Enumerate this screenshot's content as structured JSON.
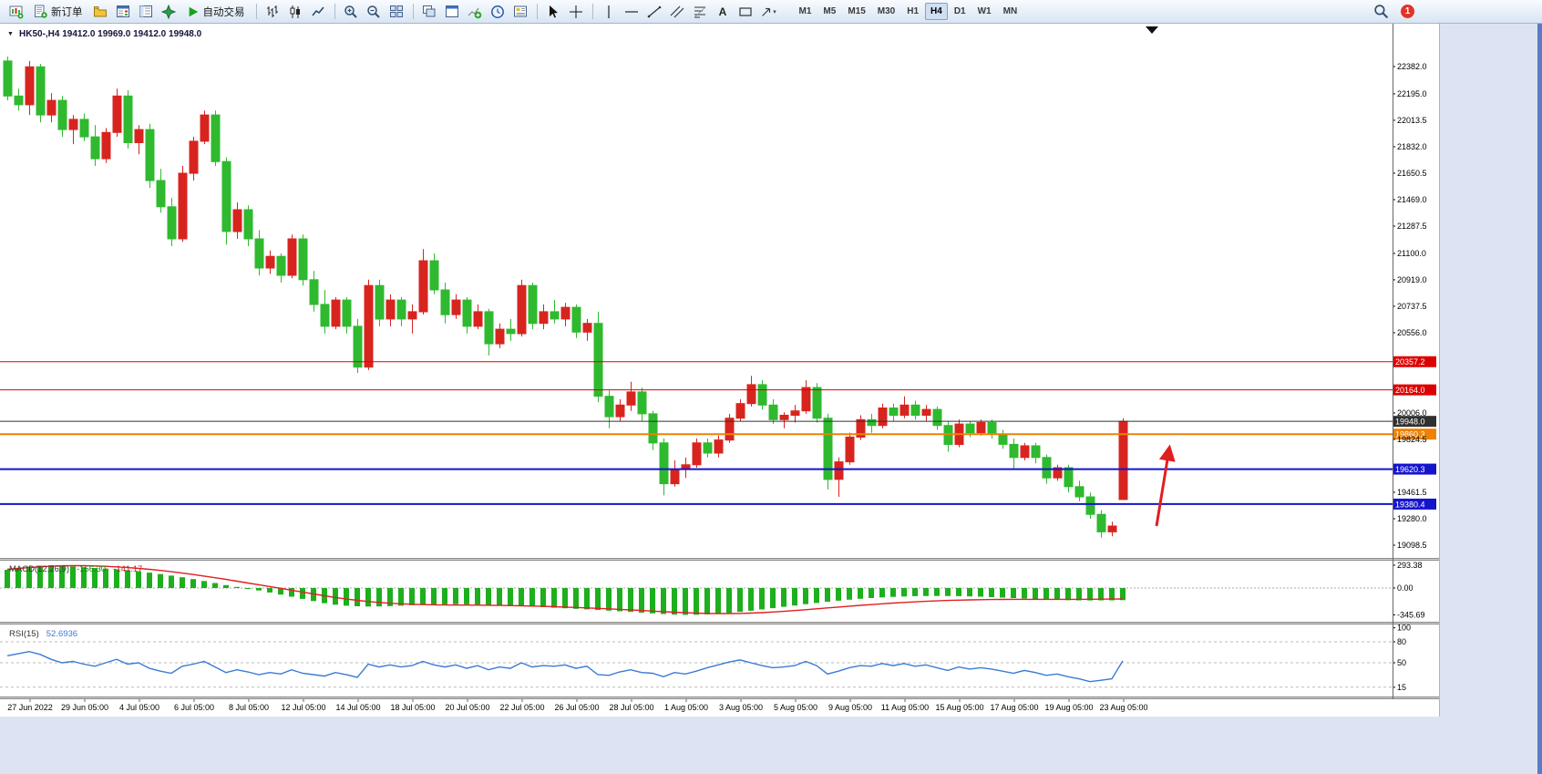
{
  "toolbar": {
    "new_order_label": "新订单",
    "auto_trading_label": "自动交易",
    "timeframes": [
      "M1",
      "M5",
      "M15",
      "M30",
      "H1",
      "H4",
      "D1",
      "W1",
      "MN"
    ],
    "active_timeframe": "H4",
    "notification_count": "1"
  },
  "icons": {
    "expander": "▼",
    "text_tool": "A",
    "dropdown_caret": "▾"
  },
  "chart": {
    "symbol_header": "HK50-,H4 19412.0 19969.0 19412.0 19948.0",
    "up_color": "#d8241f",
    "down_color": "#2fb92f",
    "price_ticks": [
      "22382.0",
      "22195.0",
      "22013.5",
      "21832.0",
      "21650.5",
      "21469.0",
      "21287.5",
      "21100.0",
      "20919.0",
      "20737.5",
      "20556.0",
      "20006.0",
      "19824.5",
      "19461.5",
      "19280.0",
      "19098.5"
    ],
    "levels": [
      {
        "price": 20357.2,
        "label": "20357.2",
        "color": "#dd0000",
        "width": 1
      },
      {
        "price": 20164.0,
        "label": "20164.0",
        "color": "#dd0000",
        "width": 1
      },
      {
        "price": 19948.0,
        "label": "19948.0",
        "color": "#303030",
        "width": 1
      },
      {
        "price": 19860.3,
        "label": "19860.3",
        "color": "#ef8200",
        "width": 2
      },
      {
        "price": 19620.3,
        "label": "19620.3",
        "color": "#1414cc",
        "width": 2
      },
      {
        "price": 19380.4,
        "label": "19380.4",
        "color": "#1414cc",
        "width": 2
      }
    ],
    "time_labels": [
      "27 Jun 2022",
      "29 Jun 05:00",
      "4 Jul 05:00",
      "6 Jul 05:00",
      "8 Jul 05:00",
      "12 Jul 05:00",
      "14 Jul 05:00",
      "18 Jul 05:00",
      "20 Jul 05:00",
      "22 Jul 05:00",
      "26 Jul 05:00",
      "28 Jul 05:00",
      "1 Aug 05:00",
      "3 Aug 05:00",
      "5 Aug 05:00",
      "9 Aug 05:00",
      "11 Aug 05:00",
      "15 Aug 05:00",
      "17 Aug 05:00",
      "19 Aug 05:00",
      "23 Aug 05:00"
    ]
  },
  "macd": {
    "label": "MACD(12,26,9)",
    "main_value": "-156.30",
    "signal_value": "-141.17",
    "scale": [
      "293.38",
      "0.00",
      "-345.69"
    ],
    "histogram": [
      235,
      255,
      275,
      288,
      293,
      288,
      278,
      268,
      258,
      250,
      242,
      230,
      215,
      198,
      180,
      160,
      138,
      115,
      90,
      64,
      38,
      14,
      -8,
      -32,
      -58,
      -85,
      -112,
      -140,
      -168,
      -195,
      -215,
      -228,
      -235,
      -238,
      -237,
      -233,
      -228,
      -222,
      -217,
      -213,
      -210,
      -209,
      -210,
      -213,
      -217,
      -222,
      -228,
      -234,
      -240,
      -247,
      -254,
      -261,
      -268,
      -275,
      -283,
      -291,
      -299,
      -308,
      -317,
      -326,
      -334,
      -341,
      -345,
      -344,
      -339,
      -331,
      -320,
      -307,
      -292,
      -276,
      -259,
      -242,
      -225,
      -208,
      -192,
      -177,
      -163,
      -150,
      -139,
      -129,
      -121,
      -114,
      -109,
      -105,
      -103,
      -102,
      -103,
      -105,
      -108,
      -112,
      -117,
      -123,
      -129,
      -135,
      -141,
      -147,
      -152,
      -156,
      -159,
      -160,
      -159,
      -158,
      -156.3
    ],
    "signal": [
      240,
      252,
      263,
      273,
      281,
      286,
      288,
      287,
      284,
      279,
      272,
      263,
      252,
      240,
      226,
      210,
      193,
      174,
      154,
      133,
      111,
      88,
      65,
      42,
      19,
      -4,
      -28,
      -52,
      -76,
      -100,
      -122,
      -142,
      -159,
      -174,
      -186,
      -196,
      -203,
      -209,
      -213,
      -216,
      -218,
      -219,
      -220,
      -221,
      -222,
      -224,
      -226,
      -229,
      -232,
      -236,
      -240,
      -245,
      -250,
      -256,
      -262,
      -268,
      -275,
      -282,
      -289,
      -297,
      -304,
      -311,
      -318,
      -323,
      -327,
      -329,
      -329,
      -327,
      -323,
      -317,
      -309,
      -300,
      -290,
      -279,
      -268,
      -256,
      -245,
      -234,
      -223,
      -213,
      -203,
      -194,
      -186,
      -178,
      -171,
      -165,
      -160,
      -156,
      -153,
      -150,
      -148,
      -147,
      -146,
      -146,
      -146,
      -146,
      -146,
      -146,
      -145,
      -144,
      -143,
      -142,
      -141.17
    ]
  },
  "rsi": {
    "label": "RSI(15)",
    "value": "52.6936",
    "scale": [
      "100",
      "80",
      "50",
      "15"
    ],
    "levels": [
      80,
      50,
      15
    ],
    "values": [
      60,
      63,
      66,
      62,
      55,
      50,
      52,
      48,
      45,
      50,
      55,
      48,
      50,
      42,
      38,
      35,
      45,
      48,
      52,
      44,
      36,
      40,
      37,
      33,
      36,
      34,
      40,
      35,
      33,
      31,
      36,
      33,
      29,
      48,
      44,
      47,
      44,
      46,
      52,
      47,
      44,
      47,
      42,
      46,
      40,
      44,
      42,
      50,
      44,
      46,
      45,
      47,
      42,
      45,
      33,
      32,
      37,
      40,
      36,
      35,
      30,
      36,
      34,
      38,
      43,
      47,
      51,
      54,
      50,
      46,
      43,
      44,
      46,
      52,
      46,
      34,
      38,
      43,
      46,
      45,
      49,
      46,
      49,
      45,
      47,
      43,
      39,
      44,
      41,
      43,
      41,
      38,
      35,
      39,
      36,
      32,
      34,
      30,
      27,
      23,
      25,
      27,
      52.69
    ]
  },
  "chart_data": {
    "type": "candlestick",
    "symbol": "HK50-",
    "timeframe": "H4",
    "ohlc_current": [
      19412.0,
      19969.0,
      19412.0,
      19948.0
    ],
    "price_range": [
      19098.5,
      22382.0
    ],
    "candles": [
      [
        22420,
        22450,
        22150,
        22180
      ],
      [
        22180,
        22230,
        22080,
        22120
      ],
      [
        22120,
        22420,
        22050,
        22380
      ],
      [
        22380,
        22400,
        22000,
        22050
      ],
      [
        22050,
        22200,
        22000,
        22150
      ],
      [
        22150,
        22180,
        21900,
        21950
      ],
      [
        21950,
        22050,
        21850,
        22020
      ],
      [
        22020,
        22060,
        21870,
        21900
      ],
      [
        21900,
        21980,
        21700,
        21750
      ],
      [
        21750,
        21960,
        21720,
        21930
      ],
      [
        21930,
        22230,
        21900,
        22180
      ],
      [
        22180,
        22220,
        21820,
        21860
      ],
      [
        21860,
        21980,
        21780,
        21950
      ],
      [
        21950,
        21990,
        21550,
        21600
      ],
      [
        21600,
        21680,
        21380,
        21420
      ],
      [
        21420,
        21480,
        21150,
        21200
      ],
      [
        21200,
        21700,
        21180,
        21650
      ],
      [
        21650,
        21900,
        21600,
        21870
      ],
      [
        21870,
        22080,
        21850,
        22050
      ],
      [
        22050,
        22080,
        21700,
        21730
      ],
      [
        21730,
        21760,
        21160,
        21250
      ],
      [
        21250,
        21450,
        21200,
        21400
      ],
      [
        21400,
        21430,
        21150,
        21200
      ],
      [
        21200,
        21260,
        20950,
        21000
      ],
      [
        21000,
        21120,
        20960,
        21080
      ],
      [
        21080,
        21100,
        20900,
        20950
      ],
      [
        20950,
        21230,
        20930,
        21200
      ],
      [
        21200,
        21230,
        20880,
        20920
      ],
      [
        20920,
        20980,
        20700,
        20750
      ],
      [
        20750,
        20850,
        20550,
        20600
      ],
      [
        20600,
        20800,
        20580,
        20780
      ],
      [
        20780,
        20800,
        20550,
        20600
      ],
      [
        20600,
        20650,
        20280,
        20320
      ],
      [
        20320,
        20920,
        20300,
        20880
      ],
      [
        20880,
        20920,
        20600,
        20650
      ],
      [
        20650,
        20820,
        20600,
        20780
      ],
      [
        20780,
        20800,
        20600,
        20650
      ],
      [
        20650,
        20750,
        20550,
        20700
      ],
      [
        20700,
        21130,
        20680,
        21050
      ],
      [
        21050,
        21100,
        20820,
        20850
      ],
      [
        20850,
        20900,
        20620,
        20680
      ],
      [
        20680,
        20820,
        20650,
        20780
      ],
      [
        20780,
        20800,
        20550,
        20600
      ],
      [
        20600,
        20750,
        20580,
        20700
      ],
      [
        20700,
        20720,
        20400,
        20480
      ],
      [
        20480,
        20620,
        20450,
        20580
      ],
      [
        20580,
        20650,
        20500,
        20550
      ],
      [
        20550,
        20920,
        20530,
        20880
      ],
      [
        20880,
        20900,
        20580,
        20620
      ],
      [
        20620,
        20750,
        20580,
        20700
      ],
      [
        20700,
        20780,
        20620,
        20650
      ],
      [
        20650,
        20760,
        20600,
        20730
      ],
      [
        20730,
        20750,
        20520,
        20560
      ],
      [
        20560,
        20650,
        20500,
        20620
      ],
      [
        20620,
        20700,
        20080,
        20120
      ],
      [
        20120,
        20160,
        19900,
        19980
      ],
      [
        19980,
        20100,
        19950,
        20060
      ],
      [
        20060,
        20220,
        20020,
        20150
      ],
      [
        20150,
        20180,
        19950,
        20000
      ],
      [
        20000,
        20020,
        19750,
        19800
      ],
      [
        19800,
        19830,
        19440,
        19520
      ],
      [
        19520,
        19680,
        19500,
        19620
      ],
      [
        19620,
        19700,
        19560,
        19650
      ],
      [
        19650,
        19830,
        19630,
        19800
      ],
      [
        19800,
        19830,
        19700,
        19730
      ],
      [
        19730,
        19850,
        19700,
        19820
      ],
      [
        19820,
        20000,
        19800,
        19970
      ],
      [
        19970,
        20100,
        19950,
        20070
      ],
      [
        20070,
        20260,
        20050,
        20200
      ],
      [
        20200,
        20230,
        20030,
        20060
      ],
      [
        20060,
        20100,
        19930,
        19960
      ],
      [
        19960,
        20010,
        19900,
        19990
      ],
      [
        19990,
        20060,
        19940,
        20020
      ],
      [
        20020,
        20230,
        20000,
        20180
      ],
      [
        20180,
        20210,
        19940,
        19970
      ],
      [
        19970,
        20000,
        19480,
        19550
      ],
      [
        19550,
        19700,
        19430,
        19670
      ],
      [
        19670,
        19870,
        19650,
        19840
      ],
      [
        19840,
        19990,
        19820,
        19960
      ],
      [
        19960,
        20000,
        19870,
        19920
      ],
      [
        19920,
        20070,
        19900,
        20040
      ],
      [
        20040,
        20070,
        19950,
        19990
      ],
      [
        19990,
        20120,
        19970,
        20060
      ],
      [
        20060,
        20090,
        19960,
        19990
      ],
      [
        19990,
        20060,
        19950,
        20030
      ],
      [
        20030,
        20050,
        19890,
        19920
      ],
      [
        19920,
        19950,
        19740,
        19790
      ],
      [
        19790,
        19960,
        19770,
        19930
      ],
      [
        19930,
        19950,
        19840,
        19870
      ],
      [
        19870,
        19960,
        19850,
        19940
      ],
      [
        19940,
        19960,
        19830,
        19860
      ],
      [
        19860,
        19890,
        19760,
        19790
      ],
      [
        19790,
        19830,
        19620,
        19700
      ],
      [
        19700,
        19800,
        19680,
        19780
      ],
      [
        19780,
        19800,
        19660,
        19700
      ],
      [
        19700,
        19720,
        19520,
        19560
      ],
      [
        19560,
        19650,
        19540,
        19630
      ],
      [
        19630,
        19650,
        19460,
        19500
      ],
      [
        19500,
        19540,
        19400,
        19430
      ],
      [
        19430,
        19460,
        19280,
        19310
      ],
      [
        19310,
        19340,
        19150,
        19190
      ],
      [
        19190,
        19260,
        19160,
        19230
      ],
      [
        19412,
        19969,
        19412,
        19948
      ]
    ]
  }
}
